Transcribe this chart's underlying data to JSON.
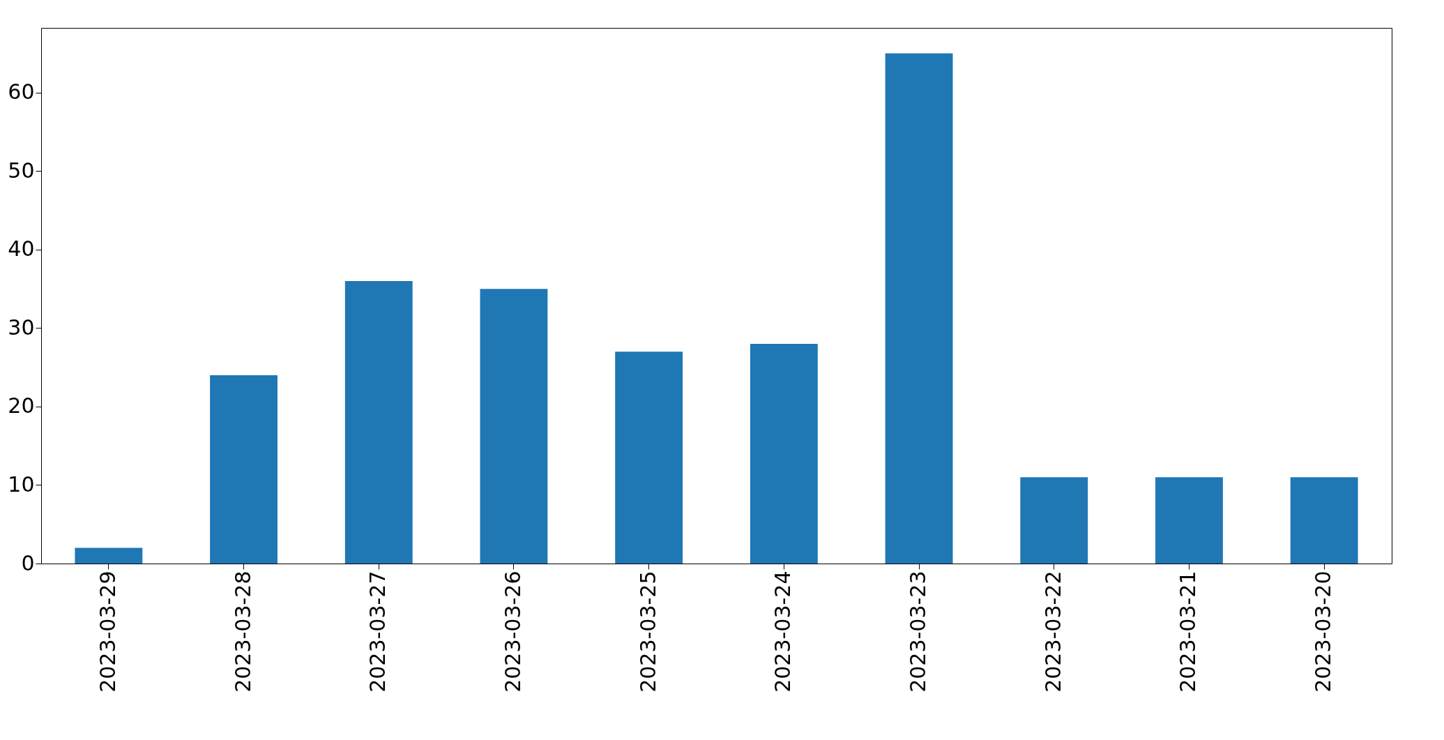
{
  "chart_data": {
    "type": "bar",
    "categories": [
      "2023-03-29",
      "2023-03-28",
      "2023-03-27",
      "2023-03-26",
      "2023-03-25",
      "2023-03-24",
      "2023-03-23",
      "2023-03-22",
      "2023-03-21",
      "2023-03-20"
    ],
    "values": [
      2,
      24,
      36,
      35,
      27,
      28,
      65,
      11,
      11,
      11
    ],
    "color": "#1f77b4",
    "ylim": [
      0,
      68.25
    ],
    "yticks": [
      0,
      10,
      20,
      30,
      40,
      50,
      60
    ],
    "grid": false
  }
}
